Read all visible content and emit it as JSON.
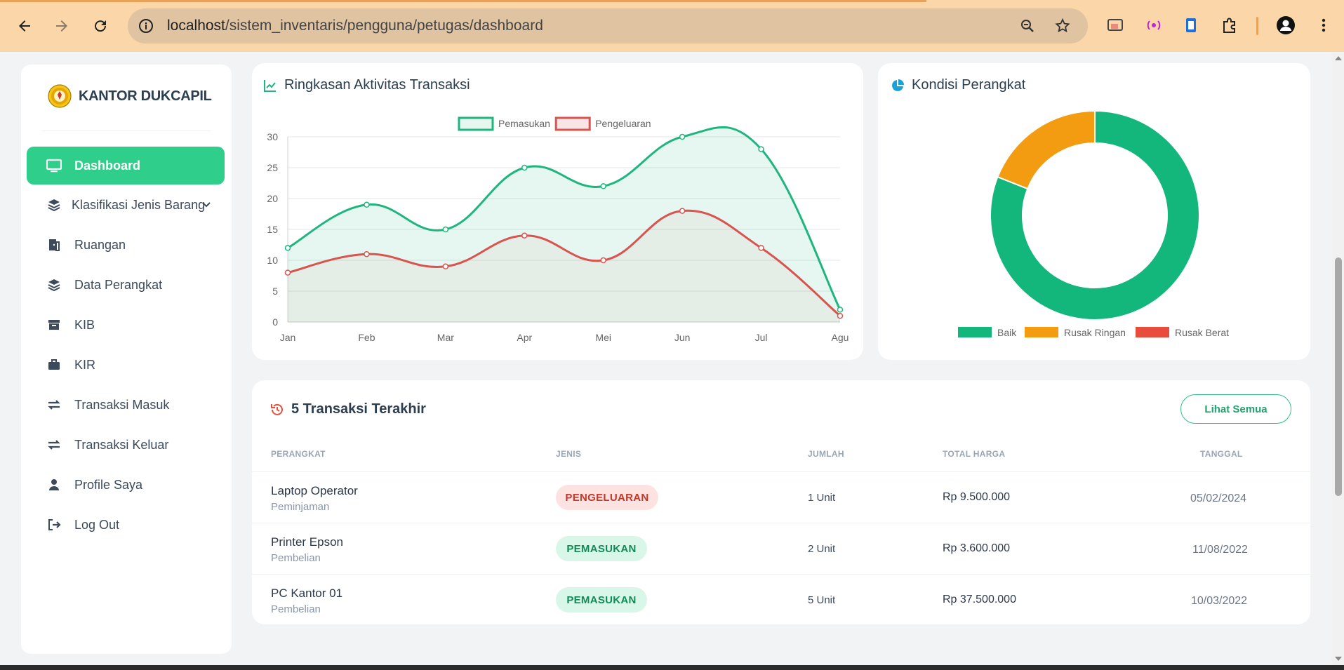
{
  "browser": {
    "url": "localhost/sistem_inventaris/pengguna/petugas/dashboard",
    "url_host": "localhost",
    "url_path": "/sistem_inventaris/pengguna/petugas/dashboard"
  },
  "sidebar": {
    "brand": "KANTOR DUKCAPIL",
    "items": [
      {
        "label": "Dashboard",
        "icon": "monitor-icon",
        "active": true
      },
      {
        "label": "Klasifikasi Jenis Barang",
        "icon": "layers-icon",
        "has_submenu": true
      },
      {
        "label": "Ruangan",
        "icon": "door-icon"
      },
      {
        "label": "Data Perangkat",
        "icon": "layers-icon"
      },
      {
        "label": "KIB",
        "icon": "archive-icon"
      },
      {
        "label": "KIR",
        "icon": "briefcase-icon"
      },
      {
        "label": "Transaksi Masuk",
        "icon": "exchange-icon"
      },
      {
        "label": "Transaksi Keluar",
        "icon": "exchange-icon"
      },
      {
        "label": "Profile Saya",
        "icon": "user-icon"
      },
      {
        "label": "Log Out",
        "icon": "logout-icon"
      }
    ]
  },
  "activity_card": {
    "title": "Ringkasan Aktivitas Transaksi"
  },
  "condition_card": {
    "title": "Kondisi Perangkat"
  },
  "chart_data": [
    {
      "type": "area",
      "title": "Ringkasan Aktivitas Transaksi",
      "categories": [
        "Jan",
        "Feb",
        "Mar",
        "Apr",
        "Mei",
        "Jun",
        "Jul",
        "Agu"
      ],
      "series": [
        {
          "name": "Pemasukan",
          "values": [
            12,
            19,
            15,
            25,
            22,
            30,
            28,
            2
          ],
          "color": "#1fb57f"
        },
        {
          "name": "Pengeluaran",
          "values": [
            8,
            11,
            9,
            14,
            10,
            18,
            12,
            1
          ],
          "color": "#d9534f"
        }
      ],
      "ylim": [
        0,
        30
      ],
      "yticks": [
        "0",
        "5",
        "10",
        "15",
        "20",
        "25",
        "30"
      ],
      "legend": "top",
      "grid": true
    },
    {
      "type": "pie",
      "title": "Kondisi Perangkat",
      "donut": true,
      "labels": [
        "Baik",
        "Rusak Ringan",
        "Rusak Berat"
      ],
      "values": [
        81,
        19,
        0
      ],
      "colors": [
        "#13b67b",
        "#f39c12",
        "#e74c3c"
      ],
      "legend": "bottom"
    }
  ],
  "transactions": {
    "title": "5 Transaksi Terakhir",
    "view_all": "Lihat Semua",
    "headers": [
      "PERANGKAT",
      "JENIS",
      "JUMLAH",
      "TOTAL HARGA",
      "TANGGAL"
    ],
    "rows": [
      {
        "name": "Laptop Operator",
        "sub": "Peminjaman",
        "type": "PENGELUARAN",
        "kind": "out",
        "qty": "1 Unit",
        "price": "Rp 9.500.000",
        "date": "05/02/2024"
      },
      {
        "name": "Printer Epson",
        "sub": "Pembelian",
        "type": "PEMASUKAN",
        "kind": "in",
        "qty": "2 Unit",
        "price": "Rp 3.600.000",
        "date": "11/08/2022"
      },
      {
        "name": "PC Kantor 01",
        "sub": "Pembelian",
        "type": "PEMASUKAN",
        "kind": "in",
        "qty": "5 Unit",
        "price": "Rp 37.500.000",
        "date": "10/03/2022"
      }
    ]
  }
}
